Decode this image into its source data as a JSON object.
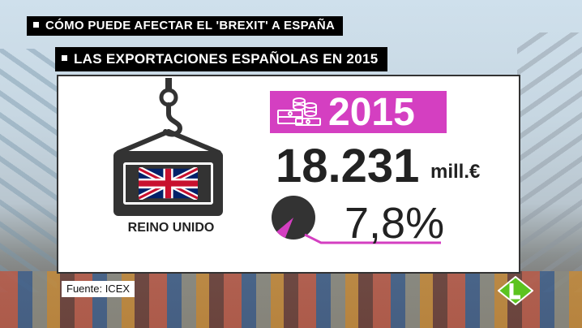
{
  "header": {
    "title": "CÓMO PUEDE AFECTAR EL 'BREXIT' A ESPAÑA",
    "subtitle": "LAS EXPORTACIONES ESPAÑOLAS EN 2015"
  },
  "card": {
    "country": "REINO UNIDO",
    "year": "2015",
    "amount": "18.231",
    "unit": "mill.€",
    "percent_label": "7,8%",
    "percent_value": 0.078,
    "icons": {
      "hook": "crane-hook-icon",
      "flag": "uk-flag-icon",
      "money": "money-stack-icon",
      "pie": "pie-icon"
    }
  },
  "footer": {
    "source": "Fuente: ICEX",
    "logo": "lasexta-logo-icon"
  },
  "colors": {
    "accent": "#d43fc1",
    "dark": "#333333",
    "logo_green": "#5cc31f"
  }
}
